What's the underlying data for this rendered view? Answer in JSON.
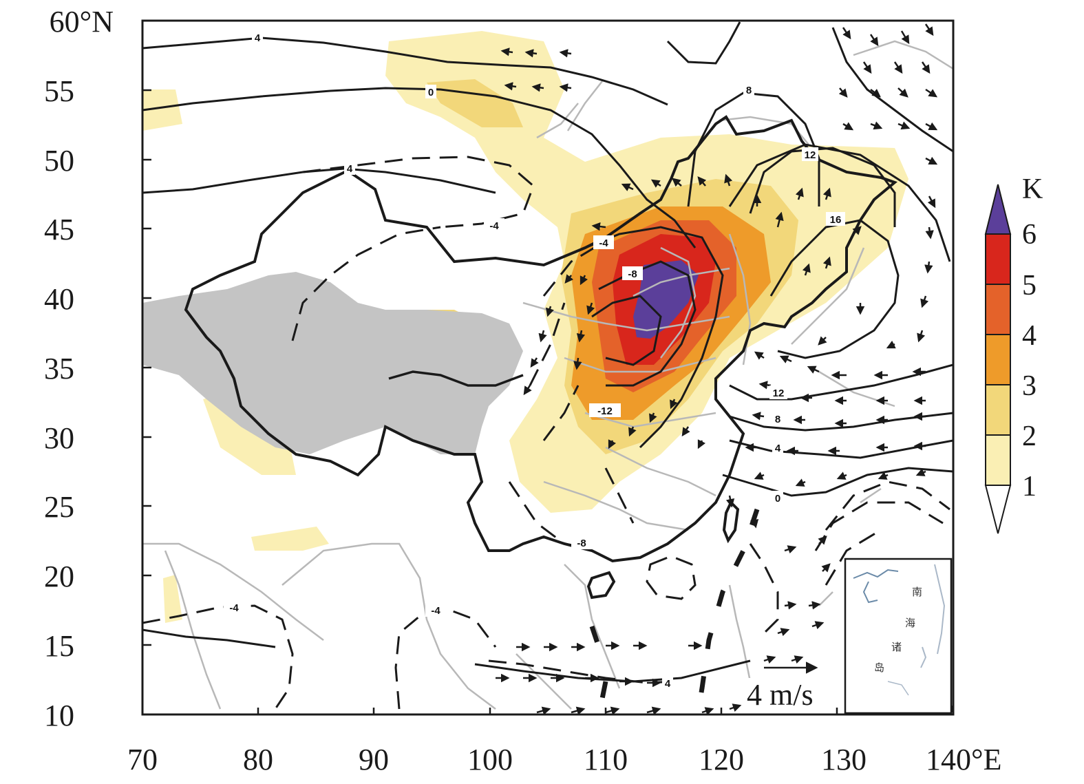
{
  "map": {
    "x_ticks": [
      "70",
      "80",
      "90",
      "100",
      "110",
      "120",
      "130",
      "140°E"
    ],
    "y_ticks": [
      "60°N",
      "55",
      "50",
      "45",
      "40",
      "35",
      "30",
      "25",
      "20",
      "15",
      "10"
    ],
    "lon_range": [
      70,
      140
    ],
    "lat_range": [
      10,
      60
    ]
  },
  "colorbar": {
    "unit": "K",
    "levels": [
      "6",
      "5",
      "4",
      "3",
      "2",
      "1"
    ],
    "colors": [
      "#5b3f9a",
      "#d8261c",
      "#e4622a",
      "#ee9b2a",
      "#f2d77a",
      "#faefb4",
      "#ffffff"
    ]
  },
  "contour_labels": [
    "4",
    "0",
    "8",
    "12",
    "16",
    "12",
    "8",
    "4",
    "0",
    "-4",
    "-8",
    "-12",
    "-8",
    "-4",
    "-4",
    "-4",
    "4",
    "4"
  ],
  "vector_scale": {
    "label": "4 m/s"
  },
  "inset": {
    "chars": [
      "南",
      "海",
      "诸",
      "岛"
    ]
  }
}
